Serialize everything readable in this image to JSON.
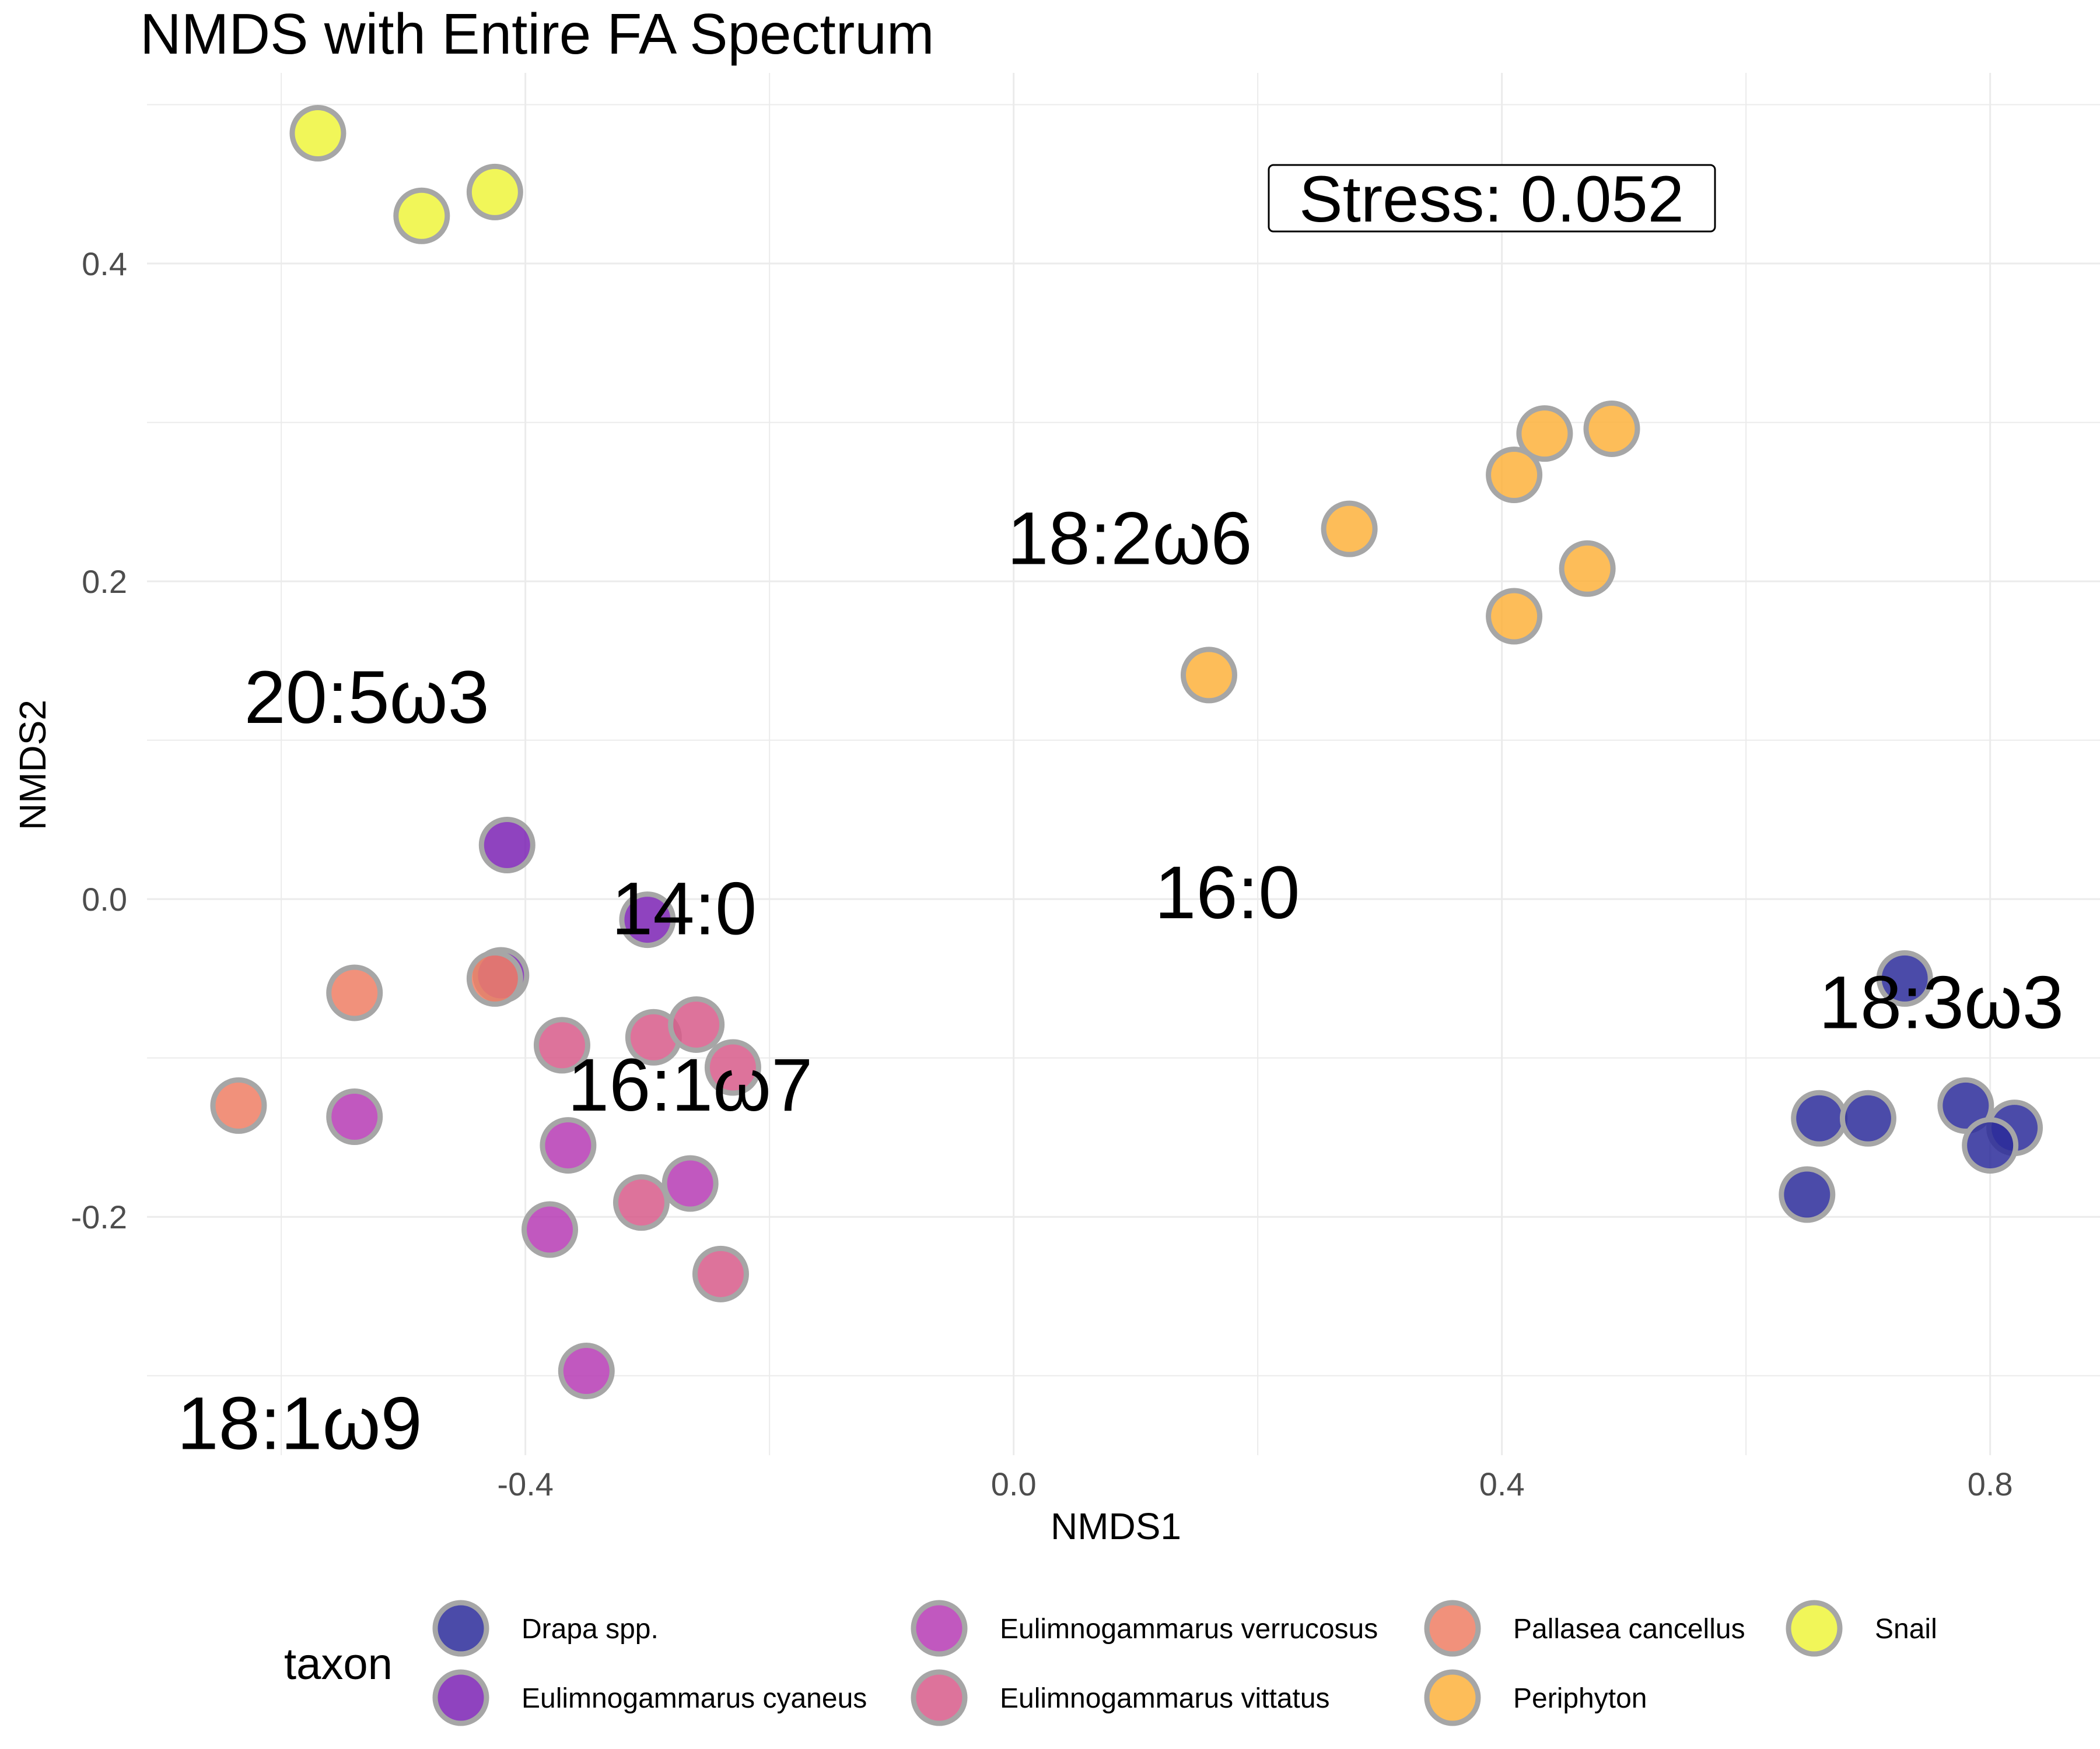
{
  "chart_data": {
    "type": "scatter",
    "title": "NMDS with Entire FA Spectrum",
    "xlabel": "NMDS1",
    "ylabel": "NMDS2",
    "xlim": [
      -0.71,
      0.89
    ],
    "ylim": [
      -0.35,
      0.52
    ],
    "x_ticks": [
      -0.4,
      0.0,
      0.4,
      0.8
    ],
    "x_tick_labels": [
      "-0.4",
      "0.0",
      "0.4",
      "0.8"
    ],
    "y_ticks": [
      -0.2,
      0.0,
      0.2,
      0.4
    ],
    "y_tick_labels": [
      "-0.2",
      "0.0",
      "0.2",
      "0.4"
    ],
    "grid": true,
    "legend": {
      "title": "taxon",
      "placement": "bottom"
    },
    "annotation": "Stress:  0.052",
    "series": [
      {
        "name": "Drapa spp.",
        "color": "#2b2b9a",
        "x": [
          0.73,
          0.66,
          0.7,
          0.65,
          0.78,
          0.82,
          0.8
        ],
        "y": [
          -0.05,
          -0.138,
          -0.138,
          -0.186,
          -0.13,
          -0.144,
          -0.155
        ]
      },
      {
        "name": "Eulimnogammarus cyaneus",
        "color": "#7b22b4",
        "x": [
          -0.415,
          -0.42,
          -0.3
        ],
        "y": [
          0.034,
          -0.048,
          -0.013
        ]
      },
      {
        "name": "Eulimnogammarus verrucosus",
        "color": "#b63bb4",
        "x": [
          -0.54,
          -0.365,
          -0.38,
          -0.35,
          -0.265
        ],
        "y": [
          -0.137,
          -0.155,
          -0.208,
          -0.297,
          -0.179
        ]
      },
      {
        "name": "Eulimnogammarus vittatus",
        "color": "#d75a8a",
        "x": [
          -0.37,
          -0.295,
          -0.26,
          -0.23,
          -0.305,
          -0.24
        ],
        "y": [
          -0.092,
          -0.087,
          -0.079,
          -0.106,
          -0.191,
          -0.236
        ]
      },
      {
        "name": "Pallasea cancellus",
        "color": "#ef7e64",
        "x": [
          -0.54,
          -0.635,
          -0.425
        ],
        "y": [
          -0.059,
          -0.13,
          -0.05
        ]
      },
      {
        "name": "Periphyton",
        "color": "#fdb23c",
        "x": [
          0.275,
          0.435,
          0.49,
          0.41,
          0.47,
          0.41,
          0.16
        ],
        "y": [
          0.233,
          0.293,
          0.296,
          0.267,
          0.208,
          0.178,
          0.141
        ]
      },
      {
        "name": "Snail",
        "color": "#eef53c",
        "x": [
          -0.57,
          -0.485,
          -0.425
        ],
        "y": [
          0.482,
          0.43,
          0.445
        ]
      }
    ],
    "fa_labels": [
      {
        "text": "18:2ω6",
        "x": 0.095,
        "y": 0.227
      },
      {
        "text": "20:5ω3",
        "x": -0.53,
        "y": 0.127
      },
      {
        "text": "14:0",
        "x": -0.27,
        "y": -0.006
      },
      {
        "text": "16:0",
        "x": 0.175,
        "y": 0.004
      },
      {
        "text": "18:3ω3",
        "x": 0.76,
        "y": -0.065
      },
      {
        "text": "16:1ω7",
        "x": -0.265,
        "y": -0.117
      },
      {
        "text": "18:1ω9",
        "x": -0.585,
        "y": -0.33
      }
    ]
  }
}
